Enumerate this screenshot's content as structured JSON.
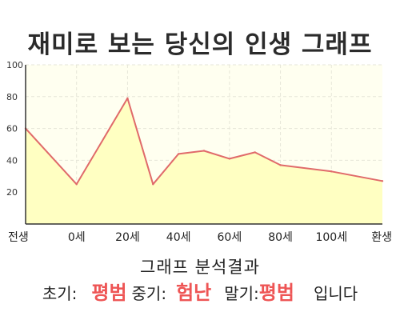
{
  "title": "재미로 보는 당신의 인생 그래프",
  "summary": {
    "heading": "그래프 분석결과",
    "early_label": "초기:",
    "early_result": "평범",
    "middle_label": "중기:",
    "middle_result": "험난",
    "late_label": "말기:",
    "late_result": "평범",
    "ending": "입니다"
  },
  "colors": {
    "line": "#e06a6a",
    "fill": "#ffffc2",
    "plot_bg": "#fffff0",
    "grid": "#e6e6d8",
    "result": "#ee5555"
  },
  "chart_data": {
    "type": "area",
    "title": "재미로 보는 당신의 인생 그래프",
    "xlabel": "",
    "ylabel": "",
    "ylim": [
      0,
      100
    ],
    "y_ticks": [
      20,
      40,
      60,
      80,
      100
    ],
    "x_tick_labels": [
      "전생",
      "0세",
      "20세",
      "40세",
      "60세",
      "80세",
      "100세",
      "환생"
    ],
    "grid": true,
    "series": [
      {
        "x": [
          0,
          1,
          2,
          2.5,
          3,
          3.5,
          4,
          4.5,
          5,
          6,
          7
        ],
        "values": [
          60,
          25,
          79,
          25,
          44,
          46,
          41,
          45,
          37,
          33,
          27
        ]
      }
    ]
  }
}
